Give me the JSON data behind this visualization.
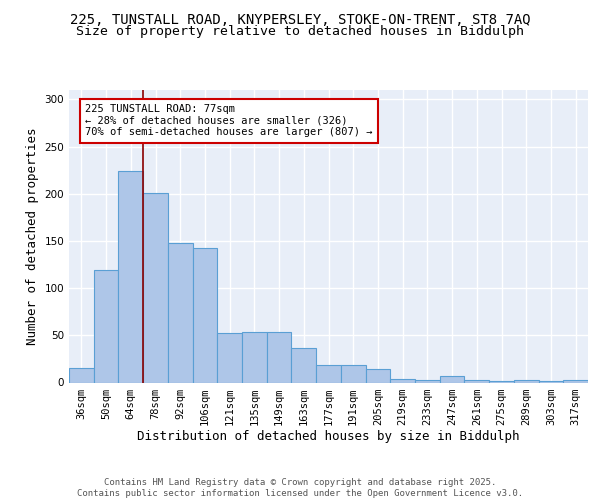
{
  "title_line1": "225, TUNSTALL ROAD, KNYPERSLEY, STOKE-ON-TRENT, ST8 7AQ",
  "title_line2": "Size of property relative to detached houses in Biddulph",
  "xlabel": "Distribution of detached houses by size in Biddulph",
  "ylabel": "Number of detached properties",
  "categories": [
    "36sqm",
    "50sqm",
    "64sqm",
    "78sqm",
    "92sqm",
    "106sqm",
    "121sqm",
    "135sqm",
    "149sqm",
    "163sqm",
    "177sqm",
    "191sqm",
    "205sqm",
    "219sqm",
    "233sqm",
    "247sqm",
    "261sqm",
    "275sqm",
    "289sqm",
    "303sqm",
    "317sqm"
  ],
  "values": [
    15,
    119,
    224,
    201,
    148,
    143,
    52,
    53,
    53,
    37,
    19,
    19,
    14,
    4,
    3,
    7,
    3,
    2,
    3,
    2,
    3
  ],
  "bar_color": "#aec6e8",
  "bar_edge_color": "#5a9fd4",
  "background_color": "#e8eef8",
  "grid_color": "#ffffff",
  "vline_color": "#8b0000",
  "annotation_text": "225 TUNSTALL ROAD: 77sqm\n← 28% of detached houses are smaller (326)\n70% of semi-detached houses are larger (807) →",
  "annotation_box_color": "#ffffff",
  "annotation_box_edge": "#cc0000",
  "ylim": [
    0,
    310
  ],
  "yticks": [
    0,
    50,
    100,
    150,
    200,
    250,
    300
  ],
  "footer": "Contains HM Land Registry data © Crown copyright and database right 2025.\nContains public sector information licensed under the Open Government Licence v3.0.",
  "title_fontsize": 10,
  "subtitle_fontsize": 9.5,
  "axis_label_fontsize": 9,
  "tick_fontsize": 7.5,
  "footer_fontsize": 6.5
}
